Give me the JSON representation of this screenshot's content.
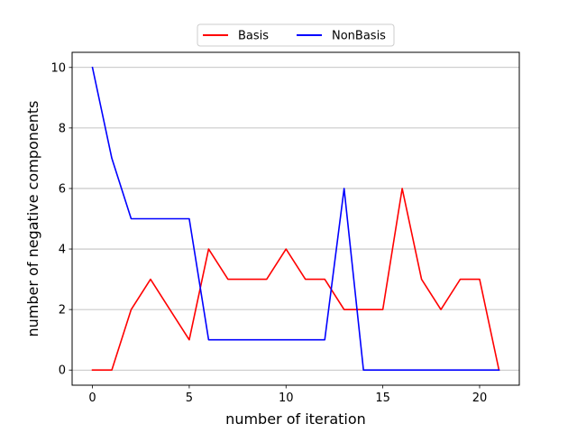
{
  "chart_data": {
    "type": "line",
    "title": "",
    "xlabel": "number of iteration",
    "ylabel": "number of negative components",
    "xlim": [
      -1.05,
      22.05
    ],
    "ylim": [
      -0.5,
      10.5
    ],
    "xticks": [
      0,
      5,
      10,
      15,
      20
    ],
    "yticks": [
      0,
      2,
      4,
      6,
      8,
      10
    ],
    "grid": "horizontal",
    "legend_position": "top-center",
    "x": [
      0,
      1,
      2,
      3,
      4,
      5,
      6,
      7,
      8,
      9,
      10,
      11,
      12,
      13,
      14,
      15,
      16,
      17,
      18,
      19,
      20,
      21
    ],
    "series": [
      {
        "name": "Basis",
        "color": "#ff0000",
        "values": [
          0,
          0,
          2,
          3,
          2,
          1,
          4,
          3,
          3,
          3,
          4,
          3,
          3,
          2,
          2,
          2,
          6,
          3,
          2,
          3,
          3,
          0
        ]
      },
      {
        "name": "NonBasis",
        "color": "#0000ff",
        "values": [
          10,
          7,
          5,
          5,
          5,
          5,
          1,
          1,
          1,
          1,
          1,
          1,
          1,
          6,
          0,
          0,
          0,
          0,
          0,
          0,
          0,
          0
        ]
      }
    ]
  }
}
